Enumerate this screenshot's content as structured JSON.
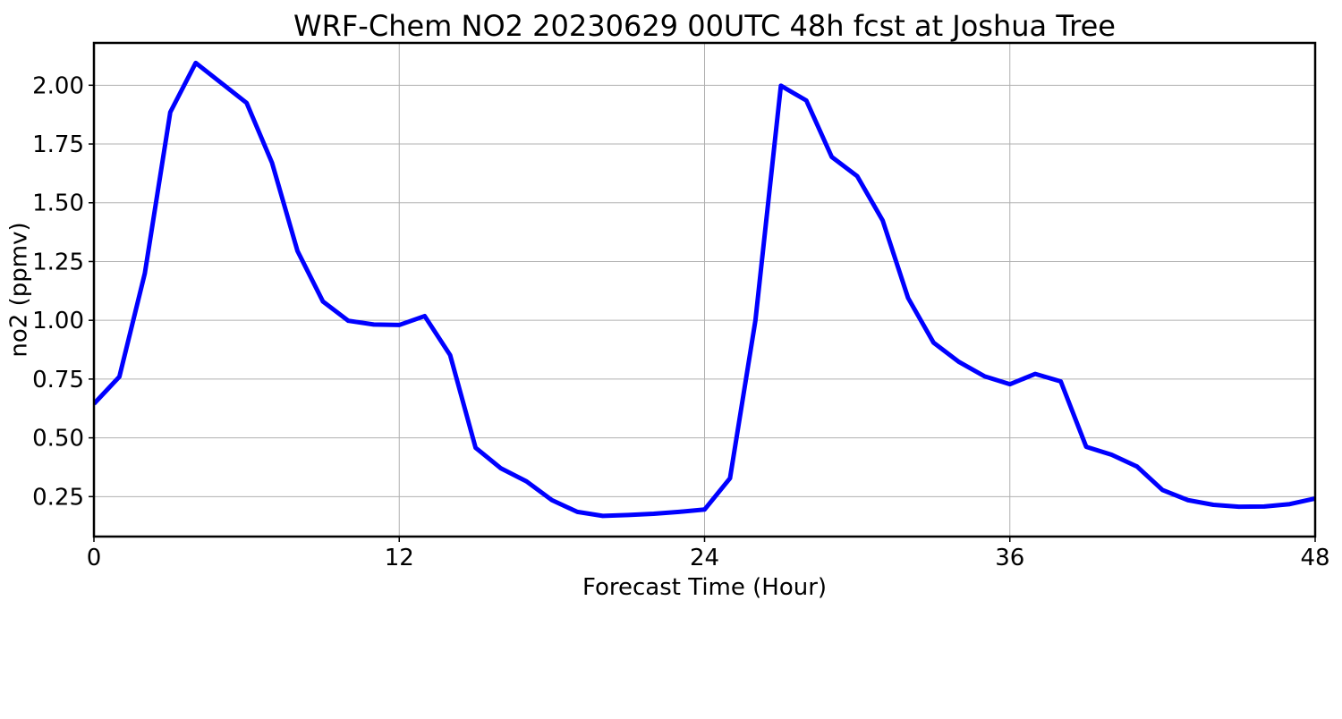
{
  "chart_data": {
    "type": "line",
    "title": "WRF-Chem NO2  20230629 00UTC 48h fcst at Joshua Tree",
    "xlabel": "Forecast Time (Hour)",
    "ylabel": "no2  (ppmv)",
    "xlim": [
      0,
      48
    ],
    "ylim": [
      0.08,
      2.18
    ],
    "x_ticks": [
      0,
      12,
      24,
      36,
      48
    ],
    "x_tick_labels": [
      "0",
      "12",
      "24",
      "36",
      "48"
    ],
    "y_ticks": [
      0.25,
      0.5,
      0.75,
      1.0,
      1.25,
      1.5,
      1.75,
      2.0
    ],
    "y_tick_labels": [
      "0.25",
      "0.50",
      "0.75",
      "1.00",
      "1.25",
      "1.50",
      "1.75",
      "2.00"
    ],
    "grid": true,
    "series": [
      {
        "color": "#0000ff",
        "x": [
          0,
          1,
          2,
          3,
          4,
          5,
          6,
          7,
          8,
          9,
          10,
          11,
          12,
          13,
          14,
          15,
          16,
          17,
          18,
          19,
          20,
          21,
          22,
          23,
          24,
          25,
          26,
          27,
          28,
          29,
          30,
          31,
          32,
          33,
          34,
          35,
          36,
          37,
          38,
          39,
          40,
          41,
          42,
          43,
          44,
          45,
          46,
          47,
          48
        ],
        "values": [
          0.645,
          0.76,
          1.2,
          1.885,
          2.095,
          2.01,
          1.925,
          1.67,
          1.295,
          1.08,
          0.998,
          0.982,
          0.98,
          1.018,
          0.852,
          0.458,
          0.37,
          0.315,
          0.235,
          0.185,
          0.168,
          0.172,
          0.177,
          0.185,
          0.195,
          0.328,
          1.0,
          1.998,
          1.935,
          1.695,
          1.613,
          1.425,
          1.095,
          0.905,
          0.823,
          0.762,
          0.728,
          0.772,
          0.74,
          0.462,
          0.428,
          0.378,
          0.278,
          0.235,
          0.215,
          0.207,
          0.208,
          0.218,
          0.242
        ]
      }
    ]
  }
}
